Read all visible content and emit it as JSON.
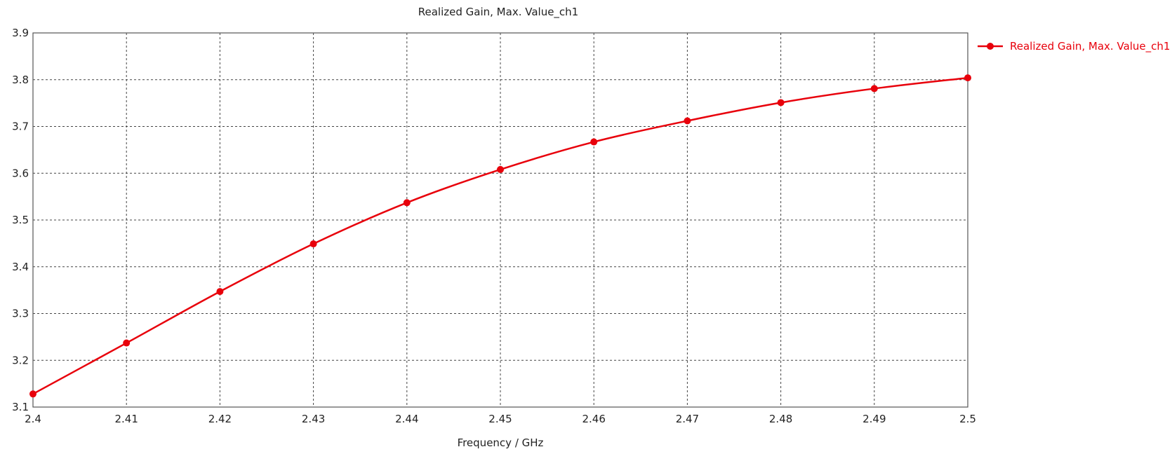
{
  "chart_data": {
    "type": "line",
    "title": "Realized Gain, Max. Value_ch1",
    "xlabel": "Frequency / GHz",
    "ylabel": "",
    "xlim": [
      2.4,
      2.5
    ],
    "ylim": [
      3.1,
      3.9
    ],
    "x_ticks": [
      "2.4",
      "2.41",
      "2.42",
      "2.43",
      "2.44",
      "2.45",
      "2.46",
      "2.47",
      "2.48",
      "2.49",
      "2.5"
    ],
    "y_ticks": [
      "3.1",
      "3.2",
      "3.3",
      "3.4",
      "3.5",
      "3.6",
      "3.7",
      "3.8",
      "3.9"
    ],
    "grid": true,
    "legend_position": "top-right",
    "series": [
      {
        "name": "Realized Gain, Max. Value_ch1",
        "color": "#e8000b",
        "x": [
          2.4,
          2.41,
          2.42,
          2.43,
          2.44,
          2.45,
          2.46,
          2.47,
          2.48,
          2.49,
          2.5
        ],
        "y": [
          3.128,
          3.237,
          3.347,
          3.449,
          3.537,
          3.608,
          3.667,
          3.712,
          3.751,
          3.781,
          3.804
        ]
      }
    ]
  }
}
